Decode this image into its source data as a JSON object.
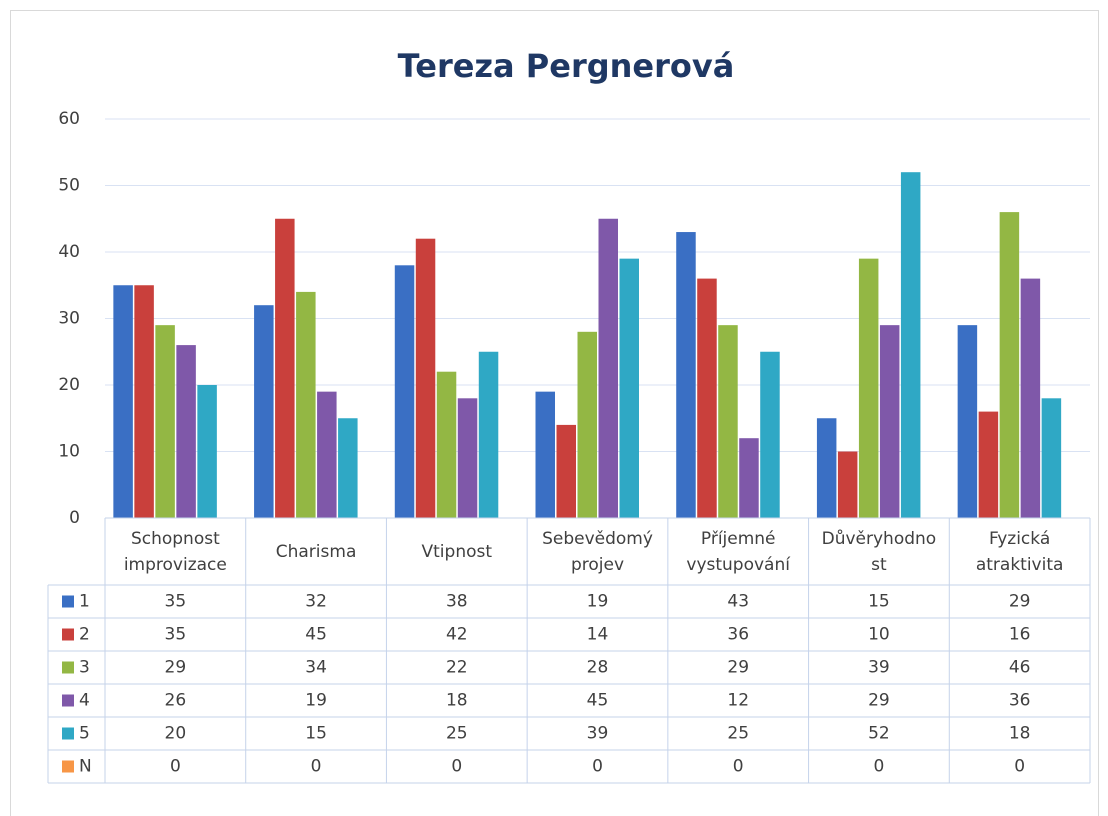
{
  "chart_data": {
    "type": "bar",
    "title": "Tereza Pergnerová",
    "categories": [
      "Schopnost improvizace",
      "Charisma",
      "Vtipnost",
      "Sebevědomý projev",
      "Příjemné vystupování",
      "Důvěryhodnost",
      "Fyzická atraktivita"
    ],
    "series": [
      {
        "name": "1",
        "color": "#3a6fc4",
        "values": [
          35,
          32,
          38,
          19,
          43,
          15,
          29
        ]
      },
      {
        "name": "2",
        "color": "#c9403c",
        "values": [
          35,
          45,
          42,
          14,
          36,
          10,
          16
        ]
      },
      {
        "name": "3",
        "color": "#93b744",
        "values": [
          29,
          34,
          22,
          28,
          29,
          39,
          46
        ]
      },
      {
        "name": "4",
        "color": "#7f58a9",
        "values": [
          26,
          19,
          18,
          45,
          12,
          29,
          36
        ]
      },
      {
        "name": "5",
        "color": "#2fa8c5",
        "values": [
          20,
          15,
          25,
          39,
          25,
          52,
          18
        ]
      },
      {
        "name": "N",
        "color": "#f79646",
        "values": [
          0,
          0,
          0,
          0,
          0,
          0,
          0
        ]
      }
    ],
    "ylim": [
      0,
      60
    ],
    "yticks": [
      0,
      10,
      20,
      30,
      40,
      50,
      60
    ],
    "grid": true,
    "data_table": true
  }
}
